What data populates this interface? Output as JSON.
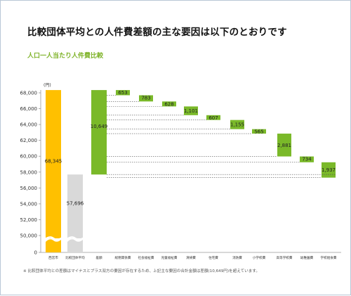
{
  "title": "比較団体平均との人件費差額の主な要因は以下のとおりです",
  "subtitle": "人口一人当たり人件費比較",
  "note": "※ 比較団体平均との差額はマイナスとプラス双方の要因が存在するため、上記主な要因の合計金額は差額(10,649円)を超えています。",
  "colors": {
    "yellow": "#ffc000",
    "gray": "#d9d9d9",
    "green": "#7ab929",
    "axis": "#999999",
    "dotted": "#555555"
  },
  "chart_data": {
    "type": "bar",
    "unit_label": "(円)",
    "y_ticks": [
      0,
      50000,
      52000,
      54000,
      56000,
      58000,
      60000,
      62000,
      64000,
      66000,
      68000
    ],
    "y_tick_labels": [
      "0",
      "50,000",
      "52,000",
      "54,000",
      "56,000",
      "58,000",
      "60,000",
      "62,000",
      "64,000",
      "66,000",
      "68,000"
    ],
    "axis_break": true,
    "categories": [
      "西宮市",
      "比較団体平均",
      "差額",
      "総務関係費",
      "社会福祉費",
      "児童福祉費",
      "清掃費",
      "住宅費",
      "消防費",
      "小学校費",
      "高等学校費",
      "幼稚園費",
      "学校給食費"
    ],
    "totals": [
      {
        "category": "西宮市",
        "value": 68345,
        "label": "68,345"
      },
      {
        "category": "比較団体平均",
        "value": 57696,
        "label": "57,696"
      }
    ],
    "difference": {
      "category": "差額",
      "value": 10649,
      "label": "10,649"
    },
    "factors": [
      {
        "category": "総務関係費",
        "value": 653,
        "label": "653"
      },
      {
        "category": "社会福祉費",
        "value": 783,
        "label": "783"
      },
      {
        "category": "児童福祉費",
        "value": 628,
        "label": "628"
      },
      {
        "category": "清掃費",
        "value": 1101,
        "label": "1,101"
      },
      {
        "category": "住宅費",
        "value": 607,
        "label": "607"
      },
      {
        "category": "消防費",
        "value": 1155,
        "label": "1,155"
      },
      {
        "category": "小学校費",
        "value": 565,
        "label": "565"
      },
      {
        "category": "高等学校費",
        "value": 2881,
        "label": "2,881"
      },
      {
        "category": "幼稚園費",
        "value": 734,
        "label": "734"
      },
      {
        "category": "学校給食費",
        "value": 1937,
        "label": "1,937"
      }
    ]
  }
}
